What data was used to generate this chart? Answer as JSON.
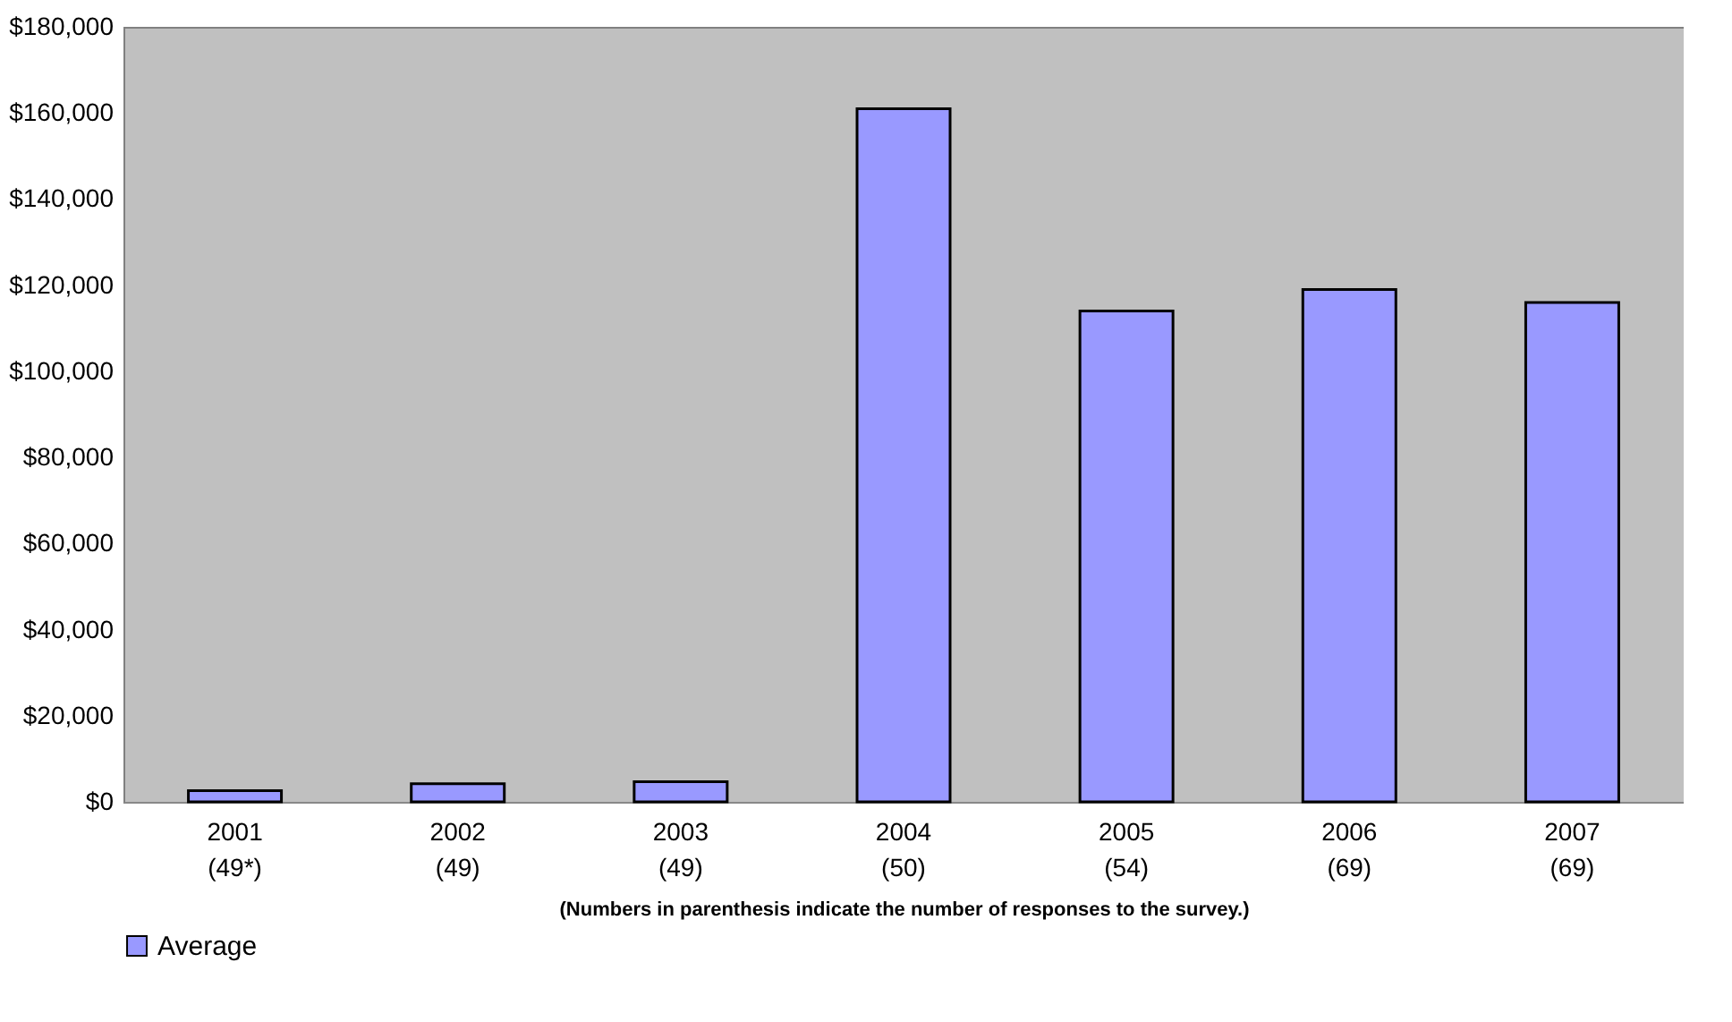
{
  "chart_data": {
    "type": "bar",
    "categories": [
      "2001\n(49*)",
      "2002\n(49)",
      "2003\n(49)",
      "2004\n(50)",
      "2005\n(54)",
      "2006\n(69)",
      "2007\n(69)"
    ],
    "series": [
      {
        "name": "Average",
        "color": "#9999ff",
        "values": [
          2600,
          4200,
          4700,
          161000,
          114000,
          119000,
          116000
        ]
      }
    ],
    "xlabel": "(Numbers in parenthesis indicate the number of responses to the survey.)",
    "ylim": [
      0,
      180000
    ],
    "yticks": [
      {
        "value": 0,
        "label": "$0"
      },
      {
        "value": 20000,
        "label": "$20,000"
      },
      {
        "value": 40000,
        "label": "$40,000"
      },
      {
        "value": 60000,
        "label": "$60,000"
      },
      {
        "value": 80000,
        "label": "$80,000"
      },
      {
        "value": 100000,
        "label": "$100,000"
      },
      {
        "value": 120000,
        "label": "$120,000"
      },
      {
        "value": 140000,
        "label": "$140,000"
      },
      {
        "value": 160000,
        "label": "$160,000"
      },
      {
        "value": 180000,
        "label": "$180,000"
      }
    ],
    "grid": false,
    "legend": "bottom"
  }
}
